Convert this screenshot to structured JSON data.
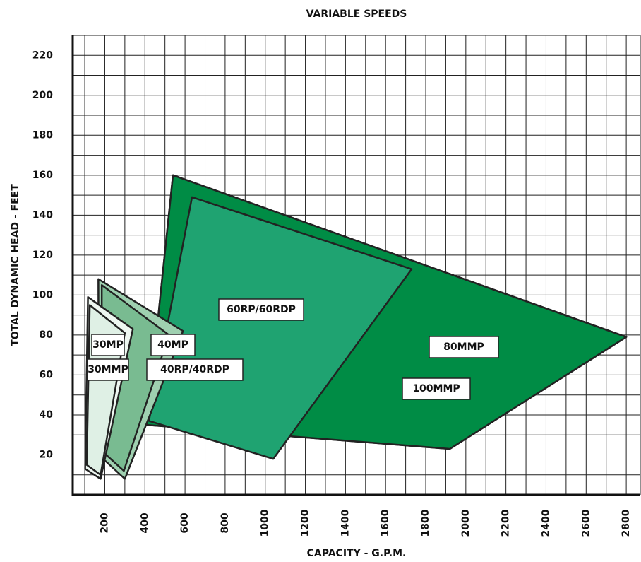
{
  "chart_data": {
    "type": "region",
    "title": "VARIABLE SPEEDS",
    "x_label": "CAPACITY - G.P.M.",
    "y_label": "TOTAL DYNAMIC HEAD - FEET",
    "xlim": [
      40,
      2870
    ],
    "ylim": [
      0,
      230
    ],
    "xticks": [
      200,
      400,
      600,
      800,
      1000,
      1200,
      1400,
      1600,
      1800,
      2000,
      2200,
      2400,
      2600,
      2800
    ],
    "yticks": [
      20,
      40,
      60,
      80,
      100,
      120,
      140,
      160,
      180,
      200,
      220
    ],
    "xgrid": [
      100,
      200,
      300,
      400,
      500,
      600,
      700,
      800,
      900,
      1000,
      1100,
      1200,
      1300,
      1400,
      1500,
      1600,
      1700,
      1800,
      1900,
      2000,
      2100,
      2200,
      2300,
      2400,
      2500,
      2600,
      2700,
      2800
    ],
    "ygrid": [
      10,
      20,
      30,
      40,
      50,
      60,
      70,
      80,
      90,
      100,
      110,
      120,
      130,
      140,
      150,
      160,
      170,
      180,
      190,
      200,
      210,
      220
    ],
    "grid": true,
    "series": [
      {
        "name": "80MMP",
        "color": "#008c45",
        "x": [
          540,
          2800,
          1920,
          410
        ],
        "y": [
          160,
          79,
          23,
          35
        ]
      },
      {
        "name": "100MMP",
        "color": "#008c45",
        "x": [
          540,
          2800,
          1920,
          410
        ],
        "y": [
          160,
          79,
          23,
          35
        ]
      },
      {
        "name": "60RP/60RDP",
        "color": "#1fa371",
        "x": [
          635,
          1730,
          1040,
          420
        ],
        "y": [
          149,
          113,
          18,
          37
        ]
      },
      {
        "name": "40MP",
        "color": "#9fd0b0",
        "x": [
          168,
          590,
          300,
          170
        ],
        "y": [
          108,
          82,
          8,
          20
        ]
      },
      {
        "name": "40RP/40RDP",
        "color": "#79bb91",
        "x": [
          185,
          520,
          295,
          185
        ],
        "y": [
          105,
          80,
          12,
          22
        ]
      },
      {
        "name": "30MP",
        "color": "#eef7f1",
        "x": [
          116,
          340,
          179,
          102
        ],
        "y": [
          99,
          83,
          8,
          13
        ]
      },
      {
        "name": "30MMP",
        "color": "#dff0e5",
        "x": [
          125,
          300,
          179,
          110
        ],
        "y": [
          95,
          81,
          10,
          15
        ]
      }
    ]
  }
}
